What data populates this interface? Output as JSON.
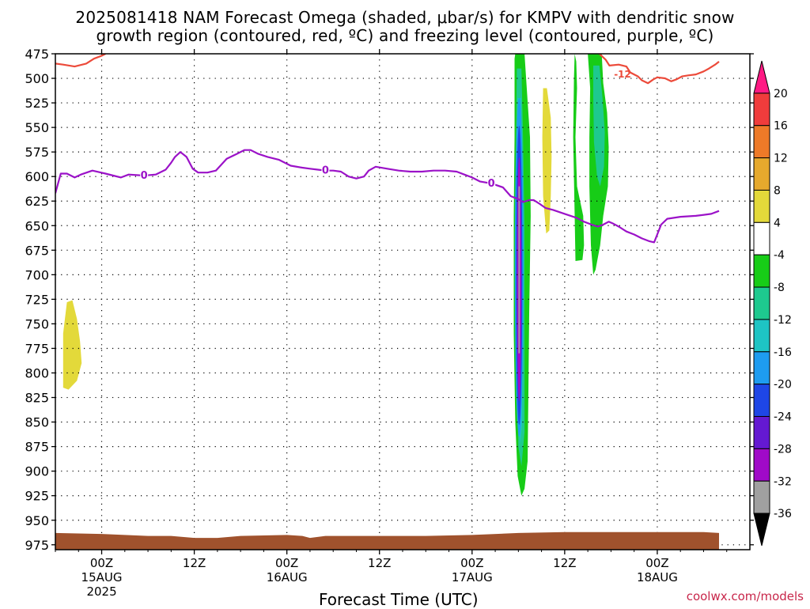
{
  "title": {
    "line1": "2025081418 NAM Forecast Omega (shaded, μbar/s) for KMPV with dendritic snow",
    "line2": "growth region (contoured, red, ºC) and freezing level (contoured, purple, ºC)"
  },
  "credit": "coolwx.com/models",
  "chart_data": {
    "type": "heatmap",
    "title": "2025081418 NAM Forecast Omega (shaded, μbar/s) for KMPV with dendritic snow growth region (contoured, red, ºC) and freezing level (contoured, purple, ºC)",
    "xlabel": "Forecast Time (UTC)",
    "ylabel": "",
    "x_range_hours": [
      -6,
      84
    ],
    "y_range_hPa": [
      475,
      980
    ],
    "y_reversed": true,
    "grid": true,
    "y_ticks": [
      475,
      500,
      525,
      550,
      575,
      600,
      625,
      650,
      675,
      700,
      725,
      750,
      775,
      800,
      825,
      850,
      875,
      900,
      925,
      950,
      975
    ],
    "x_ticks": [
      {
        "hour": 0,
        "label": "00Z",
        "sub": "15AUG",
        "sub2": "2025"
      },
      {
        "hour": 12,
        "label": "12Z",
        "sub": "",
        "sub2": ""
      },
      {
        "hour": 24,
        "label": "00Z",
        "sub": "16AUG",
        "sub2": ""
      },
      {
        "hour": 36,
        "label": "12Z",
        "sub": "",
        "sub2": ""
      },
      {
        "hour": 48,
        "label": "00Z",
        "sub": "17AUG",
        "sub2": ""
      },
      {
        "hour": 60,
        "label": "12Z",
        "sub": "",
        "sub2": ""
      },
      {
        "hour": 72,
        "label": "00Z",
        "sub": "18AUG",
        "sub2": ""
      }
    ],
    "colorbar": {
      "labels": [
        "20",
        "16",
        "12",
        "8",
        "4",
        "-4",
        "-8",
        "-12",
        "-16",
        "-20",
        "-24",
        "-28",
        "-32",
        "-36"
      ],
      "colors": [
        "#ff1a84",
        "#f03c3c",
        "#ee7a28",
        "#e6a92d",
        "#e3d93a",
        "#ffffff",
        "#17cc17",
        "#1ec98f",
        "#1ec4c4",
        "#1e9cf0",
        "#1e46e6",
        "#6419d2",
        "#a00ac8",
        "#a0a0a0",
        "#000000"
      ]
    },
    "surface_color": "#a0522d",
    "freezing_level": {
      "name": "0",
      "color": "#9b12c8",
      "label": "0",
      "points": [
        [
          -6,
          617
        ],
        [
          -5.3,
          597
        ],
        [
          -4.5,
          597
        ],
        [
          -3.5,
          601
        ],
        [
          -2.7,
          598
        ],
        [
          -1.2,
          594
        ],
        [
          0.5,
          597
        ],
        [
          1.5,
          599
        ],
        [
          2.5,
          601
        ],
        [
          3.5,
          598
        ],
        [
          5.5,
          599
        ],
        [
          7,
          598
        ],
        [
          8.3,
          593
        ],
        [
          9,
          586
        ],
        [
          9.5,
          580
        ],
        [
          10.2,
          575
        ],
        [
          11,
          580
        ],
        [
          11.8,
          592
        ],
        [
          12.5,
          596
        ],
        [
          13.7,
          596
        ],
        [
          14.8,
          594
        ],
        [
          16.2,
          582
        ],
        [
          17.5,
          577
        ],
        [
          18.5,
          573
        ],
        [
          19.3,
          573
        ],
        [
          20.3,
          577
        ],
        [
          21.5,
          580
        ],
        [
          23,
          583
        ],
        [
          24.5,
          589
        ],
        [
          26,
          591
        ],
        [
          27,
          592
        ],
        [
          28,
          593
        ],
        [
          29,
          594
        ],
        [
          30,
          594
        ],
        [
          31,
          595
        ],
        [
          32,
          600
        ],
        [
          33,
          602
        ],
        [
          34,
          600
        ],
        [
          34.6,
          594
        ],
        [
          35.5,
          590
        ],
        [
          37,
          592
        ],
        [
          38.5,
          594
        ],
        [
          40,
          595
        ],
        [
          41.5,
          595
        ],
        [
          43,
          594
        ],
        [
          44.5,
          594
        ],
        [
          46,
          595
        ],
        [
          47,
          598
        ],
        [
          48,
          601
        ],
        [
          49,
          605
        ],
        [
          50.5,
          607
        ],
        [
          52,
          611
        ],
        [
          53,
          620
        ],
        [
          54,
          623
        ],
        [
          54.6,
          626
        ],
        [
          55.4,
          624
        ],
        [
          56,
          624
        ],
        [
          56.8,
          628
        ],
        [
          57.5,
          632
        ],
        [
          58.5,
          634
        ],
        [
          60,
          638
        ],
        [
          61.5,
          642
        ],
        [
          62.5,
          646
        ],
        [
          63.5,
          649
        ],
        [
          64.3,
          651
        ],
        [
          65,
          649
        ],
        [
          65.7,
          646
        ],
        [
          66.3,
          648
        ],
        [
          67,
          651
        ],
        [
          68,
          656
        ],
        [
          69,
          659
        ],
        [
          70,
          663
        ],
        [
          71,
          666
        ],
        [
          71.6,
          667
        ],
        [
          72.5,
          649
        ],
        [
          73.3,
          643
        ],
        [
          75,
          641
        ],
        [
          77,
          640
        ],
        [
          79,
          638
        ],
        [
          80,
          635
        ]
      ],
      "label_positions": [
        [
          5.5,
          599
        ],
        [
          29,
          594
        ],
        [
          50.5,
          607
        ]
      ]
    },
    "dgz_contour": {
      "name": "-12",
      "color": "#ec4a3a",
      "label": "-12",
      "segments": [
        [
          [
            -6,
            485
          ],
          [
            -5,
            486
          ],
          [
            -3.5,
            488
          ],
          [
            -2,
            485
          ],
          [
            -1,
            480
          ],
          [
            0,
            477
          ],
          [
            0.5,
            475
          ]
        ],
        [
          [
            64.5,
            475
          ],
          [
            65.3,
            481
          ],
          [
            65.8,
            487
          ],
          [
            67,
            486
          ],
          [
            68,
            488
          ],
          [
            68.5,
            494
          ],
          [
            69.5,
            498
          ],
          [
            70,
            502
          ],
          [
            70.8,
            505
          ],
          [
            71.5,
            501
          ],
          [
            72,
            499
          ],
          [
            73,
            500
          ],
          [
            73.8,
            503
          ],
          [
            74.5,
            501
          ],
          [
            75.2,
            498
          ],
          [
            76,
            497
          ],
          [
            77,
            496
          ],
          [
            78,
            493
          ],
          [
            78.7,
            490
          ],
          [
            79.5,
            486
          ],
          [
            80,
            483
          ]
        ]
      ],
      "label_positions": [
        [
          67.5,
          496
        ]
      ]
    },
    "omega_regions": [
      {
        "value_band": "4",
        "color": "#e3d93a",
        "polygon": [
          [
            -4.5,
            728
          ],
          [
            -3.8,
            726
          ],
          [
            -3.2,
            745
          ],
          [
            -2.8,
            768
          ],
          [
            -2.6,
            790
          ],
          [
            -3.2,
            808
          ],
          [
            -4.3,
            817
          ],
          [
            -5,
            815
          ],
          [
            -5,
            760
          ]
        ]
      },
      {
        "value_band": "4",
        "color": "#e3d93a",
        "polygon": [
          [
            57.2,
            510
          ],
          [
            57.7,
            510
          ],
          [
            58.2,
            540
          ],
          [
            58.3,
            580
          ],
          [
            58.2,
            620
          ],
          [
            58,
            655
          ],
          [
            57.6,
            658
          ],
          [
            57.2,
            620
          ],
          [
            57.1,
            560
          ]
        ]
      },
      {
        "value_band": "-8",
        "color": "#17cc17",
        "polygon": [
          [
            53.6,
            475
          ],
          [
            54.8,
            475
          ],
          [
            55,
            500
          ],
          [
            55.5,
            560
          ],
          [
            55.6,
            640
          ],
          [
            55.4,
            740
          ],
          [
            55.3,
            820
          ],
          [
            55.2,
            890
          ],
          [
            54.8,
            918
          ],
          [
            54.4,
            925
          ],
          [
            53.9,
            905
          ],
          [
            53.6,
            850
          ],
          [
            53.4,
            760
          ],
          [
            53.4,
            640
          ],
          [
            53.5,
            560
          ],
          [
            53.5,
            480
          ]
        ]
      },
      {
        "value_band": "-12",
        "color": "#1ec98f",
        "polygon": [
          [
            53.8,
            490
          ],
          [
            54.4,
            490
          ],
          [
            54.6,
            560
          ],
          [
            54.8,
            650
          ],
          [
            54.8,
            760
          ],
          [
            54.8,
            860
          ],
          [
            54.4,
            895
          ],
          [
            54,
            875
          ],
          [
            53.8,
            780
          ],
          [
            53.7,
            650
          ],
          [
            53.7,
            560
          ]
        ]
      },
      {
        "value_band": "-16",
        "color": "#1ec4c4",
        "polygon": [
          [
            53.9,
            520
          ],
          [
            54.35,
            520
          ],
          [
            54.5,
            600
          ],
          [
            54.5,
            720
          ],
          [
            54.5,
            850
          ],
          [
            54.25,
            872
          ],
          [
            54,
            850
          ],
          [
            53.9,
            720
          ],
          [
            53.8,
            600
          ]
        ]
      },
      {
        "value_band": "-8",
        "color": "#17cc17",
        "polygon": [
          [
            61.3,
            475
          ],
          [
            61.5,
            483
          ],
          [
            61.6,
            510
          ],
          [
            61.4,
            560
          ],
          [
            61.6,
            610
          ],
          [
            62.4,
            640
          ],
          [
            62.5,
            670
          ],
          [
            62.3,
            685
          ],
          [
            61.4,
            686
          ],
          [
            61.3,
            640
          ],
          [
            61.1,
            560
          ],
          [
            61.2,
            500
          ]
        ]
      },
      {
        "value_band": "-8",
        "color": "#17cc17",
        "polygon": [
          [
            63,
            475
          ],
          [
            64.8,
            475
          ],
          [
            65,
            505
          ],
          [
            65.5,
            535
          ],
          [
            65.7,
            570
          ],
          [
            65.6,
            610
          ],
          [
            65,
            640
          ],
          [
            64.6,
            670
          ],
          [
            64,
            695
          ],
          [
            63.7,
            700
          ],
          [
            63.4,
            670
          ],
          [
            63.2,
            610
          ],
          [
            63.2,
            560
          ],
          [
            63.3,
            510
          ]
        ]
      },
      {
        "value_band": "-12",
        "color": "#1ec98f",
        "polygon": [
          [
            63.7,
            487
          ],
          [
            64.5,
            487
          ],
          [
            64.9,
            520
          ],
          [
            65.2,
            555
          ],
          [
            65.1,
            590
          ],
          [
            64.6,
            610
          ],
          [
            64.2,
            600
          ],
          [
            63.8,
            565
          ],
          [
            63.7,
            520
          ]
        ]
      }
    ],
    "omega_core": {
      "color_outer": "#1e9cf0",
      "color_mid": "#1e46e6",
      "color_inner": "#a00ac8",
      "color_center": "#a0a0a0",
      "x_hour": 54.1,
      "p_top": 520,
      "p_bottom": 865
    },
    "surface_points": [
      [
        -6,
        963
      ],
      [
        0,
        964
      ],
      [
        6,
        966
      ],
      [
        9,
        966
      ],
      [
        12,
        968
      ],
      [
        15,
        968
      ],
      [
        18,
        966
      ],
      [
        24,
        965
      ],
      [
        26,
        966
      ],
      [
        27,
        968
      ],
      [
        29,
        966
      ],
      [
        36,
        966
      ],
      [
        42,
        966
      ],
      [
        48,
        965
      ],
      [
        54,
        963
      ],
      [
        60,
        962
      ],
      [
        66,
        962
      ],
      [
        72,
        962
      ],
      [
        78,
        962
      ],
      [
        80,
        963
      ]
    ]
  }
}
